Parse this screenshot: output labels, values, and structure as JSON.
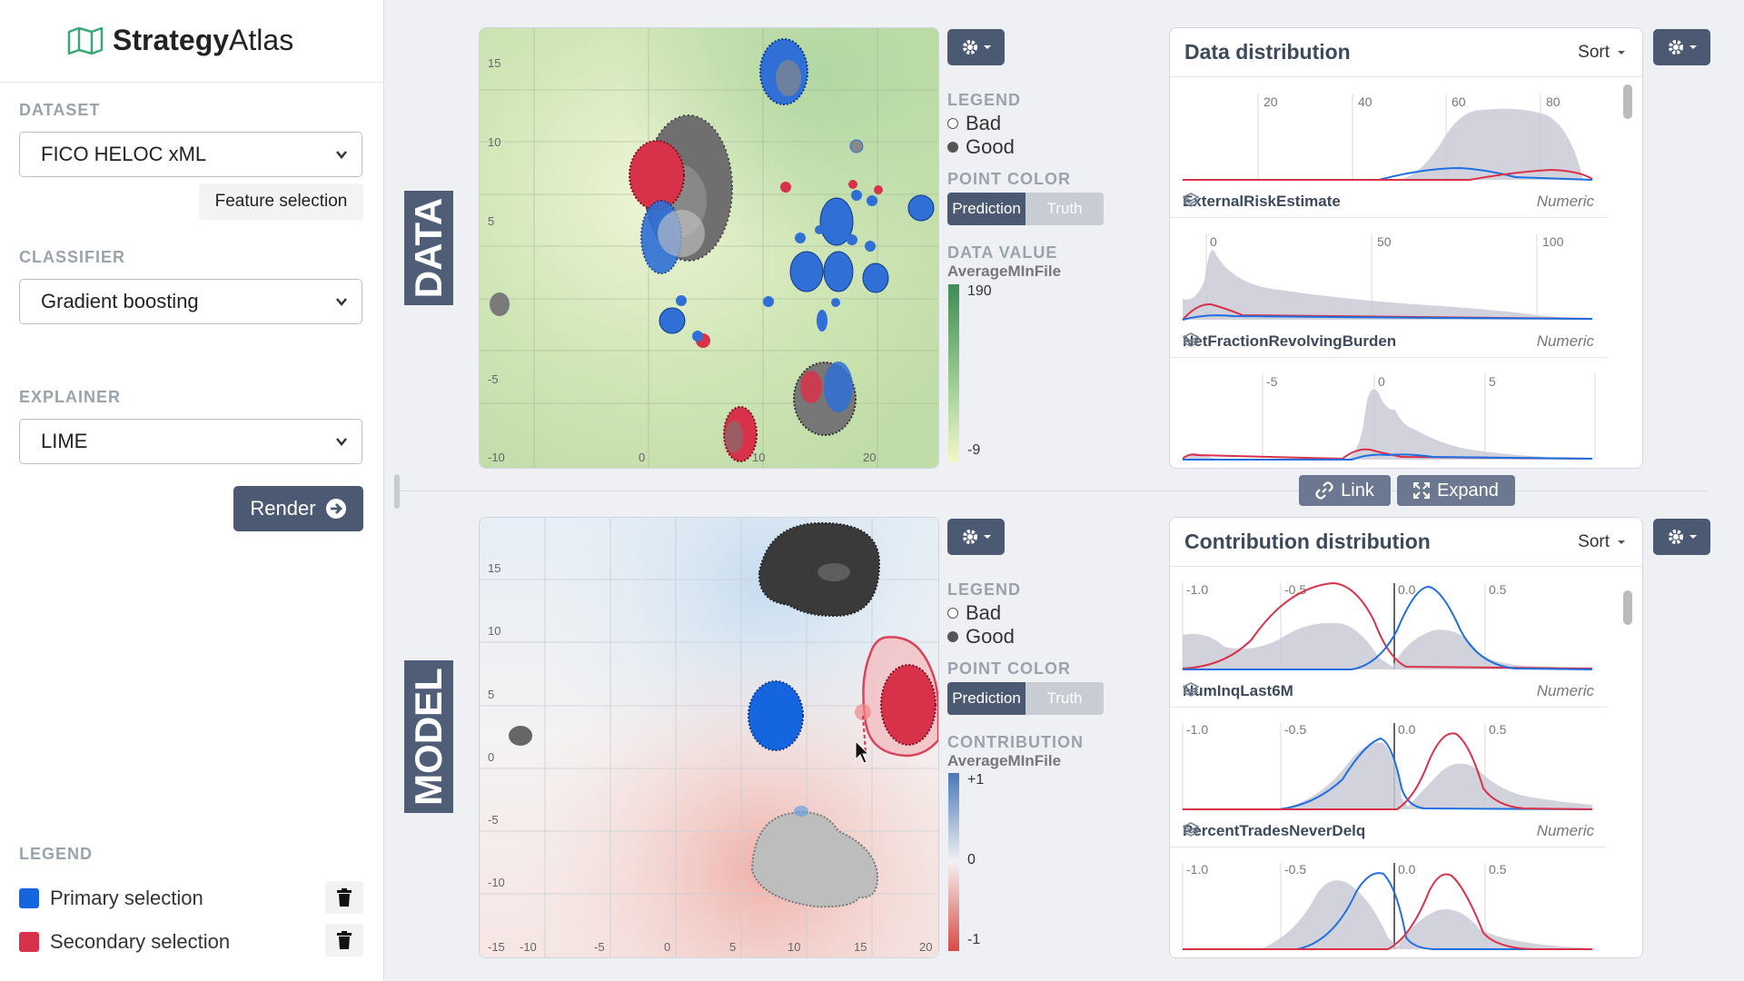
{
  "app": {
    "name_bold": "Strategy",
    "name_rest": "Atlas"
  },
  "sidebar": {
    "dataset_label": "DATASET",
    "dataset_value": "FICO HELOC xML",
    "feature_button": "Feature selection",
    "classifier_label": "CLASSIFIER",
    "classifier_value": "Gradient boosting",
    "explainer_label": "EXPLAINER",
    "explainer_value": "LIME",
    "render_button": "Render",
    "legend_label": "LEGEND",
    "legend_items": [
      {
        "label": "Primary selection",
        "color": "#1565e0"
      },
      {
        "label": "Secondary selection",
        "color": "#d8324a"
      }
    ]
  },
  "data_view": {
    "tag": "DATA",
    "legend_title": "LEGEND",
    "legend_bad": "Bad",
    "legend_good": "Good",
    "point_color_title": "POINT COLOR",
    "toggle_prediction": "Prediction",
    "toggle_truth": "Truth",
    "value_title": "DATA VALUE",
    "value_feature": "AverageMInFile",
    "scale_max": "190",
    "scale_min": "-9",
    "y_ticks": [
      "15",
      "10",
      "5",
      "-5",
      "-10"
    ],
    "x_ticks": [
      "0",
      "10",
      "20"
    ]
  },
  "model_view": {
    "tag": "MODEL",
    "legend_title": "LEGEND",
    "legend_bad": "Bad",
    "legend_good": "Good",
    "point_color_title": "POINT COLOR",
    "toggle_prediction": "Prediction",
    "toggle_truth": "Truth",
    "value_title": "CONTRIBUTION",
    "value_feature": "AverageMInFile",
    "scale_max": "+1",
    "scale_mid": "0",
    "scale_min": "-1",
    "y_ticks": [
      "15",
      "10",
      "5",
      "0",
      "-5",
      "-10",
      "-15"
    ],
    "x_ticks": [
      "-10",
      "-5",
      "0",
      "5",
      "10",
      "15",
      "20"
    ]
  },
  "controls": {
    "link": "Link",
    "expand": "Expand"
  },
  "data_distribution": {
    "title": "Data distribution",
    "sort": "Sort",
    "rows": [
      {
        "name": "ExternalRiskEstimate",
        "type": "Numeric",
        "ticks": [
          "20",
          "40",
          "60",
          "80"
        ]
      },
      {
        "name": "NetFractionRevolvingBurden",
        "type": "Numeric",
        "ticks": [
          "0",
          "50",
          "100"
        ]
      },
      {
        "name": "",
        "type": "",
        "ticks": [
          "-5",
          "0",
          "5"
        ]
      }
    ]
  },
  "contribution_distribution": {
    "title": "Contribution distribution",
    "sort": "Sort",
    "rows": [
      {
        "name": "NumInqLast6M",
        "type": "Numeric",
        "ticks": [
          "-1.0",
          "-0.5",
          "0.0",
          "0.5"
        ]
      },
      {
        "name": "PercentTradesNeverDelq",
        "type": "Numeric",
        "ticks": [
          "-1.0",
          "-0.5",
          "0.0",
          "0.5"
        ]
      },
      {
        "name": "",
        "type": "",
        "ticks": [
          "-1.0",
          "-0.5",
          "0.0",
          "0.5"
        ]
      }
    ]
  },
  "colors": {
    "primary": "#1565e0",
    "secondary": "#d8324a",
    "accent": "#4b5a72"
  }
}
